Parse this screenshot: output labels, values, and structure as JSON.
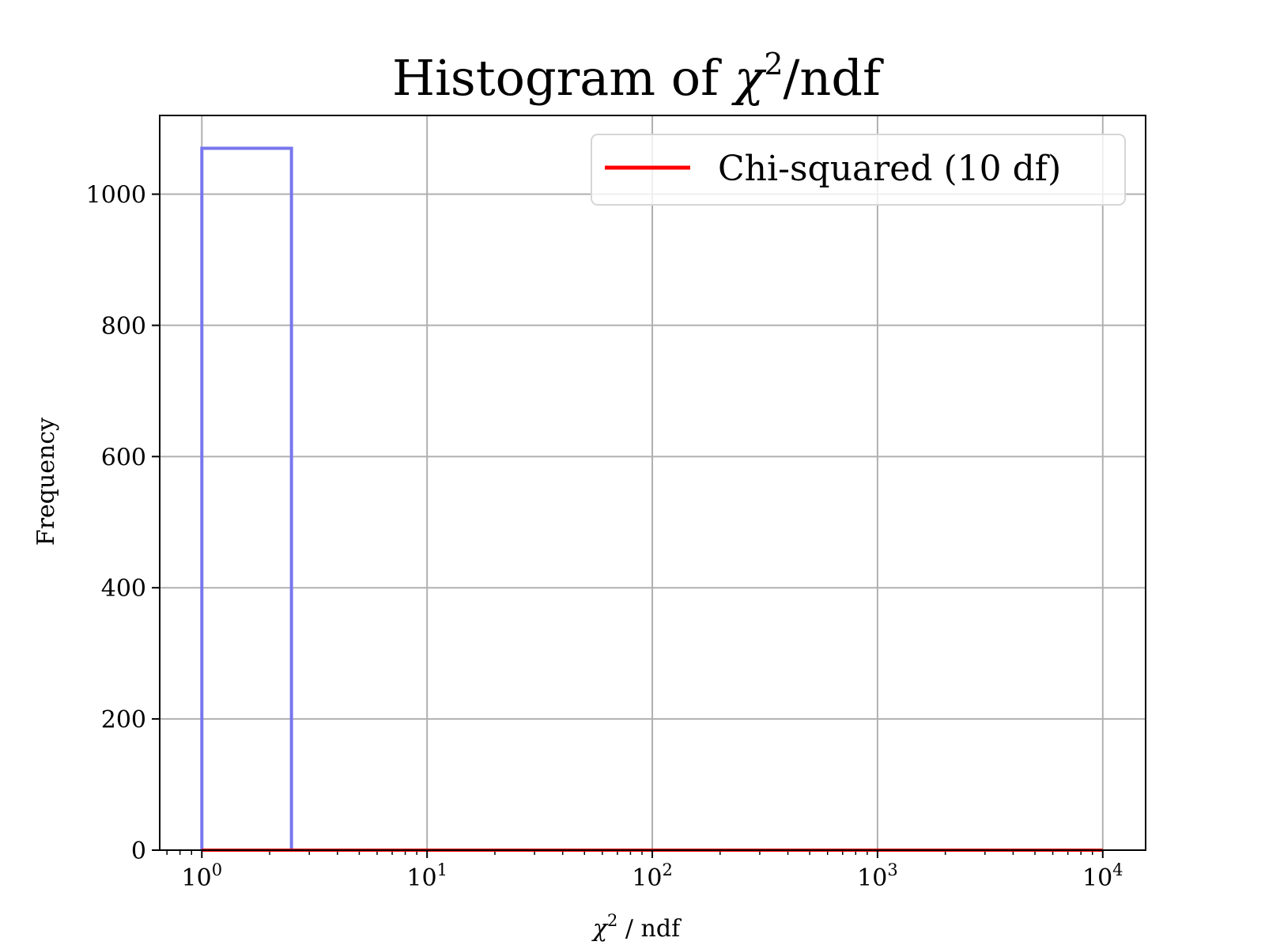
{
  "chart_data": {
    "type": "bar",
    "title": "Histogram of χ²/ndf",
    "title_parts": {
      "prefix": "Histogram of ",
      "symbol": "χ",
      "sup": "2",
      "suffix": "/ndf"
    },
    "xlabel": "χ² / ndf",
    "xlabel_parts": {
      "symbol": "χ",
      "sup": "2",
      "suffix": " / ndf"
    },
    "ylabel": "Frequency",
    "xscale": "log",
    "xlim": [
      0.65,
      15500
    ],
    "ylim": [
      0,
      1120
    ],
    "x_ticks": [
      {
        "base": "10",
        "exp": "0",
        "value": 1
      },
      {
        "base": "10",
        "exp": "1",
        "value": 10
      },
      {
        "base": "10",
        "exp": "2",
        "value": 100
      },
      {
        "base": "10",
        "exp": "3",
        "value": 1000
      },
      {
        "base": "10",
        "exp": "4",
        "value": 10000
      }
    ],
    "y_ticks": [
      0,
      200,
      400,
      600,
      800,
      1000
    ],
    "grid": true,
    "histogram": {
      "style": "step",
      "color": "#7777ee",
      "bins": [
        {
          "x0": 1.0,
          "x1": 2.5,
          "count": 1070
        }
      ]
    },
    "series": [
      {
        "name": "Chi-squared (10 df)",
        "type": "line",
        "color": "#ff0000",
        "x": [
          1,
          10000
        ],
        "y": [
          0,
          0
        ]
      }
    ],
    "legend": {
      "position": "top-right",
      "entries": [
        "Chi-squared (10 df)"
      ]
    }
  }
}
